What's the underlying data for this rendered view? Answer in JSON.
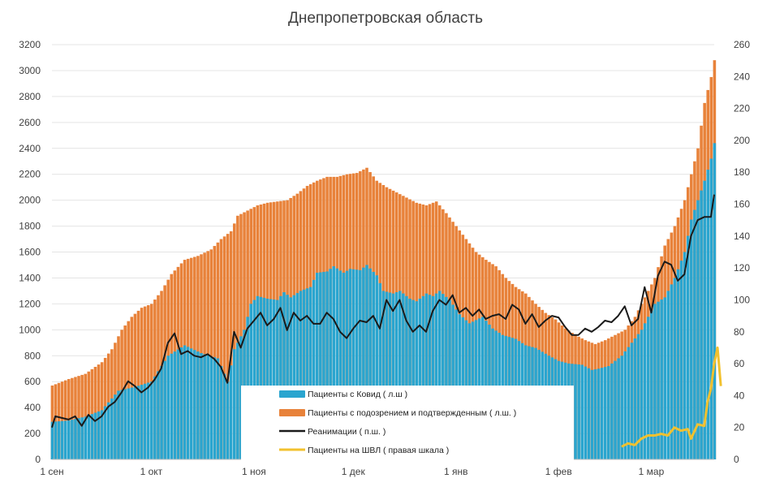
{
  "chart_data": {
    "type": "bar",
    "title": "Днепропетровская область",
    "x_axis": {
      "tick_labels": [
        "1 сен",
        "1 окт",
        "1 ноя",
        "1 дек",
        "1 янв",
        "1 фев",
        "1 мар"
      ],
      "tick_days": [
        0,
        30,
        61,
        91,
        122,
        153,
        181
      ],
      "range_days": [
        0,
        200
      ]
    },
    "y_left": {
      "range": [
        0,
        3200
      ],
      "step": 200,
      "tick_labels": [
        "0",
        "200",
        "400",
        "600",
        "800",
        "1000",
        "1200",
        "1400",
        "1600",
        "1800",
        "2000",
        "2200",
        "2400",
        "2600",
        "2800",
        "3000",
        "3200"
      ]
    },
    "y_right": {
      "range": [
        0,
        260
      ],
      "step": 20,
      "tick_labels": [
        "0",
        "20",
        "40",
        "60",
        "80",
        "100",
        "120",
        "140",
        "160",
        "180",
        "200",
        "220",
        "240",
        "260"
      ]
    },
    "grid": true,
    "legend": [
      {
        "key": "covid",
        "label": "Пациенты с Ковид ( л.ш )",
        "color": "#2AA5CF"
      },
      {
        "key": "suspected",
        "label": "Пациенты с подозрением и подтвержденным ( л.ш. )",
        "color": "#E8823A"
      },
      {
        "key": "icu",
        "label": "Реанимации ( п.ш. )",
        "color": "#1A1A1A"
      },
      {
        "key": "ventilator",
        "label": "Пациенты на ШВЛ ( правая шкала )",
        "color": "#F2C12E"
      }
    ],
    "series_keypoints": {
      "covid_left_axis": [
        [
          0,
          290
        ],
        [
          5,
          300
        ],
        [
          10,
          330
        ],
        [
          15,
          380
        ],
        [
          20,
          530
        ],
        [
          25,
          560
        ],
        [
          30,
          600
        ],
        [
          35,
          800
        ],
        [
          40,
          880
        ],
        [
          45,
          820
        ],
        [
          50,
          780
        ],
        [
          53,
          600
        ],
        [
          55,
          850
        ],
        [
          58,
          1000
        ],
        [
          60,
          1200
        ],
        [
          62,
          1260
        ],
        [
          65,
          1240
        ],
        [
          68,
          1230
        ],
        [
          70,
          1290
        ],
        [
          72,
          1250
        ],
        [
          75,
          1300
        ],
        [
          78,
          1330
        ],
        [
          80,
          1440
        ],
        [
          83,
          1450
        ],
        [
          85,
          1490
        ],
        [
          88,
          1440
        ],
        [
          90,
          1470
        ],
        [
          93,
          1460
        ],
        [
          95,
          1500
        ],
        [
          98,
          1420
        ],
        [
          100,
          1300
        ],
        [
          103,
          1280
        ],
        [
          105,
          1300
        ],
        [
          108,
          1240
        ],
        [
          110,
          1220
        ],
        [
          113,
          1280
        ],
        [
          115,
          1260
        ],
        [
          117,
          1300
        ],
        [
          120,
          1230
        ],
        [
          123,
          1120
        ],
        [
          126,
          1050
        ],
        [
          130,
          1100
        ],
        [
          133,
          1010
        ],
        [
          136,
          960
        ],
        [
          140,
          930
        ],
        [
          143,
          880
        ],
        [
          146,
          860
        ],
        [
          150,
          800
        ],
        [
          153,
          760
        ],
        [
          156,
          740
        ],
        [
          160,
          730
        ],
        [
          163,
          690
        ],
        [
          165,
          700
        ],
        [
          168,
          720
        ],
        [
          172,
          800
        ],
        [
          175,
          900
        ],
        [
          178,
          1000
        ],
        [
          180,
          1100
        ],
        [
          182,
          1200
        ],
        [
          185,
          1250
        ],
        [
          188,
          1400
        ],
        [
          191,
          1600
        ],
        [
          193,
          1850
        ],
        [
          195,
          2000
        ],
        [
          197,
          2150
        ],
        [
          199,
          2320
        ],
        [
          200,
          2440
        ]
      ],
      "suspected_left_axis": [
        [
          0,
          570
        ],
        [
          5,
          620
        ],
        [
          10,
          660
        ],
        [
          15,
          750
        ],
        [
          18,
          850
        ],
        [
          21,
          1000
        ],
        [
          24,
          1100
        ],
        [
          27,
          1170
        ],
        [
          30,
          1200
        ],
        [
          33,
          1300
        ],
        [
          36,
          1430
        ],
        [
          40,
          1540
        ],
        [
          44,
          1570
        ],
        [
          48,
          1620
        ],
        [
          51,
          1700
        ],
        [
          54,
          1760
        ],
        [
          56,
          1880
        ],
        [
          59,
          1920
        ],
        [
          62,
          1960
        ],
        [
          65,
          1980
        ],
        [
          68,
          1990
        ],
        [
          71,
          2000
        ],
        [
          74,
          2050
        ],
        [
          77,
          2110
        ],
        [
          80,
          2150
        ],
        [
          83,
          2180
        ],
        [
          86,
          2180
        ],
        [
          89,
          2200
        ],
        [
          92,
          2210
        ],
        [
          95,
          2250
        ],
        [
          98,
          2150
        ],
        [
          101,
          2100
        ],
        [
          104,
          2060
        ],
        [
          107,
          2020
        ],
        [
          110,
          1980
        ],
        [
          113,
          1960
        ],
        [
          116,
          1990
        ],
        [
          119,
          1900
        ],
        [
          122,
          1800
        ],
        [
          125,
          1700
        ],
        [
          128,
          1600
        ],
        [
          131,
          1540
        ],
        [
          134,
          1490
        ],
        [
          137,
          1400
        ],
        [
          140,
          1330
        ],
        [
          143,
          1280
        ],
        [
          146,
          1200
        ],
        [
          149,
          1130
        ],
        [
          152,
          1080
        ],
        [
          155,
          1010
        ],
        [
          158,
          960
        ],
        [
          161,
          920
        ],
        [
          164,
          890
        ],
        [
          167,
          920
        ],
        [
          170,
          960
        ],
        [
          173,
          1000
        ],
        [
          176,
          1100
        ],
        [
          179,
          1250
        ],
        [
          182,
          1400
        ],
        [
          185,
          1650
        ],
        [
          188,
          1800
        ],
        [
          191,
          2000
        ],
        [
          193,
          2200
        ],
        [
          195,
          2400
        ],
        [
          197,
          2750
        ],
        [
          199,
          2950
        ],
        [
          200,
          3080
        ]
      ],
      "icu_right_axis": [
        [
          0,
          20
        ],
        [
          1,
          27
        ],
        [
          3,
          26
        ],
        [
          5,
          25
        ],
        [
          7,
          27
        ],
        [
          9,
          21
        ],
        [
          11,
          28
        ],
        [
          13,
          24
        ],
        [
          15,
          27
        ],
        [
          17,
          33
        ],
        [
          19,
          36
        ],
        [
          21,
          42
        ],
        [
          23,
          49
        ],
        [
          25,
          46
        ],
        [
          27,
          42
        ],
        [
          29,
          45
        ],
        [
          31,
          50
        ],
        [
          33,
          57
        ],
        [
          35,
          73
        ],
        [
          37,
          79
        ],
        [
          39,
          66
        ],
        [
          41,
          68
        ],
        [
          43,
          65
        ],
        [
          45,
          64
        ],
        [
          47,
          66
        ],
        [
          49,
          63
        ],
        [
          51,
          58
        ],
        [
          53,
          48
        ],
        [
          55,
          80
        ],
        [
          57,
          70
        ],
        [
          59,
          82
        ],
        [
          61,
          87
        ],
        [
          63,
          92
        ],
        [
          65,
          84
        ],
        [
          67,
          88
        ],
        [
          69,
          95
        ],
        [
          71,
          81
        ],
        [
          73,
          92
        ],
        [
          75,
          87
        ],
        [
          77,
          90
        ],
        [
          79,
          85
        ],
        [
          81,
          85
        ],
        [
          83,
          92
        ],
        [
          85,
          88
        ],
        [
          87,
          80
        ],
        [
          89,
          76
        ],
        [
          91,
          82
        ],
        [
          93,
          87
        ],
        [
          95,
          86
        ],
        [
          97,
          90
        ],
        [
          99,
          82
        ],
        [
          101,
          100
        ],
        [
          103,
          93
        ],
        [
          105,
          100
        ],
        [
          107,
          87
        ],
        [
          109,
          80
        ],
        [
          111,
          84
        ],
        [
          113,
          80
        ],
        [
          115,
          93
        ],
        [
          117,
          100
        ],
        [
          119,
          97
        ],
        [
          121,
          103
        ],
        [
          123,
          92
        ],
        [
          125,
          95
        ],
        [
          127,
          90
        ],
        [
          129,
          94
        ],
        [
          131,
          88
        ],
        [
          133,
          90
        ],
        [
          135,
          91
        ],
        [
          137,
          88
        ],
        [
          139,
          97
        ],
        [
          141,
          94
        ],
        [
          143,
          85
        ],
        [
          145,
          91
        ],
        [
          147,
          83
        ],
        [
          149,
          87
        ],
        [
          151,
          90
        ],
        [
          153,
          89
        ],
        [
          155,
          83
        ],
        [
          157,
          78
        ],
        [
          159,
          78
        ],
        [
          161,
          82
        ],
        [
          163,
          80
        ],
        [
          165,
          83
        ],
        [
          167,
          87
        ],
        [
          169,
          86
        ],
        [
          171,
          90
        ],
        [
          173,
          96
        ],
        [
          175,
          84
        ],
        [
          177,
          88
        ],
        [
          179,
          108
        ],
        [
          181,
          92
        ],
        [
          183,
          115
        ],
        [
          185,
          124
        ],
        [
          187,
          122
        ],
        [
          189,
          112
        ],
        [
          191,
          116
        ],
        [
          193,
          140
        ],
        [
          195,
          150
        ],
        [
          197,
          152
        ],
        [
          199,
          152
        ],
        [
          200,
          166
        ]
      ],
      "ventilator_right_axis": [
        [
          172,
          8
        ],
        [
          174,
          10
        ],
        [
          176,
          9
        ],
        [
          178,
          13
        ],
        [
          180,
          15
        ],
        [
          182,
          15
        ],
        [
          184,
          16
        ],
        [
          186,
          15
        ],
        [
          188,
          20
        ],
        [
          190,
          18
        ],
        [
          192,
          19
        ],
        [
          193,
          13
        ],
        [
          195,
          22
        ],
        [
          197,
          21
        ],
        [
          198,
          36
        ],
        [
          199,
          44
        ],
        [
          200,
          60
        ],
        [
          201,
          70
        ],
        [
          202,
          46
        ]
      ]
    }
  }
}
